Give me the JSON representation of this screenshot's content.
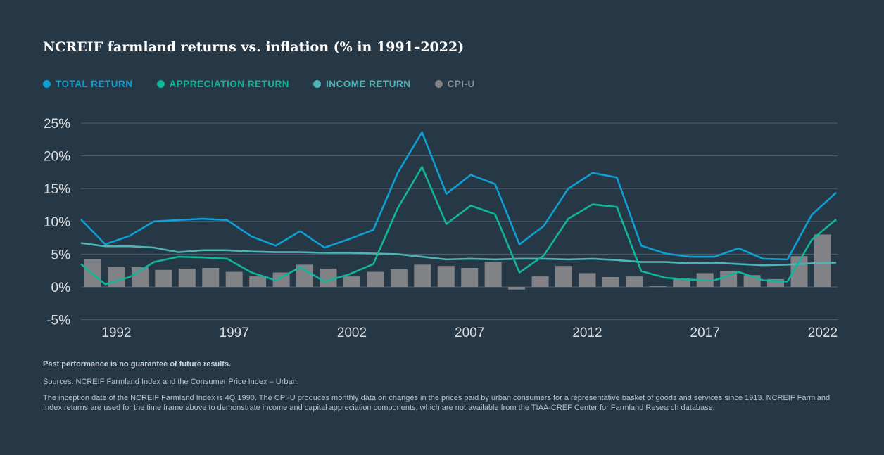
{
  "chart_data": {
    "type": "line",
    "title": "NCREIF farmland returns vs. inflation (% in 1991–2022)",
    "x": [
      1991,
      1992,
      1993,
      1994,
      1995,
      1996,
      1997,
      1998,
      1999,
      2000,
      2001,
      2002,
      2003,
      2004,
      2005,
      2006,
      2007,
      2008,
      2009,
      2010,
      2011,
      2012,
      2013,
      2014,
      2015,
      2016,
      2017,
      2018,
      2019,
      2020,
      2021,
      2022
    ],
    "xticks": [
      "1992",
      "1997",
      "2002",
      "2007",
      "2012",
      "2017",
      "2022"
    ],
    "xtick_values": [
      1992,
      1997,
      2002,
      2007,
      2012,
      2017,
      2022
    ],
    "yticks": [
      "25%",
      "20%",
      "15%",
      "10%",
      "5%",
      "0%",
      "-5%"
    ],
    "ytick_values": [
      25,
      20,
      15,
      10,
      5,
      0,
      -5
    ],
    "ylim": [
      -5,
      25
    ],
    "grid": true,
    "legend_placement": "top-left",
    "series": [
      {
        "name": "TOTAL RETURN",
        "kind": "line",
        "color": "#0e9fd3",
        "values": [
          10.3,
          6.5,
          7.8,
          10.0,
          10.2,
          10.4,
          10.2,
          7.7,
          6.3,
          8.5,
          6.0,
          7.3,
          8.7,
          17.4,
          23.6,
          14.2,
          17.1,
          15.7,
          6.5,
          9.3,
          15.0,
          17.4,
          16.7,
          6.3,
          5.1,
          4.6,
          4.6,
          5.9,
          4.3,
          4.2,
          11.0,
          14.4
        ]
      },
      {
        "name": "APPRECIATION RETURN",
        "kind": "line",
        "color": "#10b59b",
        "values": [
          3.5,
          0.4,
          1.5,
          3.8,
          4.6,
          4.5,
          4.3,
          2.2,
          1.0,
          3.0,
          0.8,
          1.9,
          3.5,
          12.0,
          18.3,
          9.6,
          12.4,
          11.1,
          2.2,
          4.8,
          10.4,
          12.6,
          12.2,
          2.4,
          1.4,
          1.1,
          1.0,
          2.3,
          1.0,
          0.8,
          7.2,
          10.3
        ]
      },
      {
        "name": "INCOME RETURN",
        "kind": "line",
        "color": "#4fb3b5",
        "values": [
          6.7,
          6.2,
          6.2,
          6.0,
          5.3,
          5.6,
          5.6,
          5.4,
          5.3,
          5.3,
          5.2,
          5.2,
          5.1,
          5.0,
          4.6,
          4.2,
          4.3,
          4.2,
          4.3,
          4.3,
          4.2,
          4.3,
          4.1,
          3.8,
          3.8,
          3.6,
          3.7,
          3.5,
          3.3,
          3.4,
          3.6,
          3.7
        ]
      },
      {
        "name": "CPI-U",
        "kind": "bar",
        "color": "#808285",
        "values": [
          4.2,
          3.0,
          3.0,
          2.6,
          2.8,
          2.9,
          2.3,
          1.6,
          2.2,
          3.4,
          2.8,
          1.6,
          2.3,
          2.7,
          3.4,
          3.2,
          2.9,
          3.8,
          -0.4,
          1.6,
          3.2,
          2.1,
          1.5,
          1.6,
          0.1,
          1.3,
          2.1,
          2.4,
          1.8,
          1.2,
          4.7,
          8.0
        ]
      }
    ]
  },
  "footnotes": {
    "disclaimer": "Past performance is no guarantee of future results.",
    "sources": "Sources: NCREIF Farmland Index and the Consumer Price Index – Urban.",
    "note": "The inception date of the NCREIF Farmland Index is 4Q 1990. The CPI-U produces monthly data on changes in the prices paid by urban consumers for a representative basket of goods and services since 1913. NCREIF Farmland Index returns are used for the time frame above to demonstrate income and capital appreciation components, which are not available from the TIAA-CREF Center for Farmland Research database."
  }
}
